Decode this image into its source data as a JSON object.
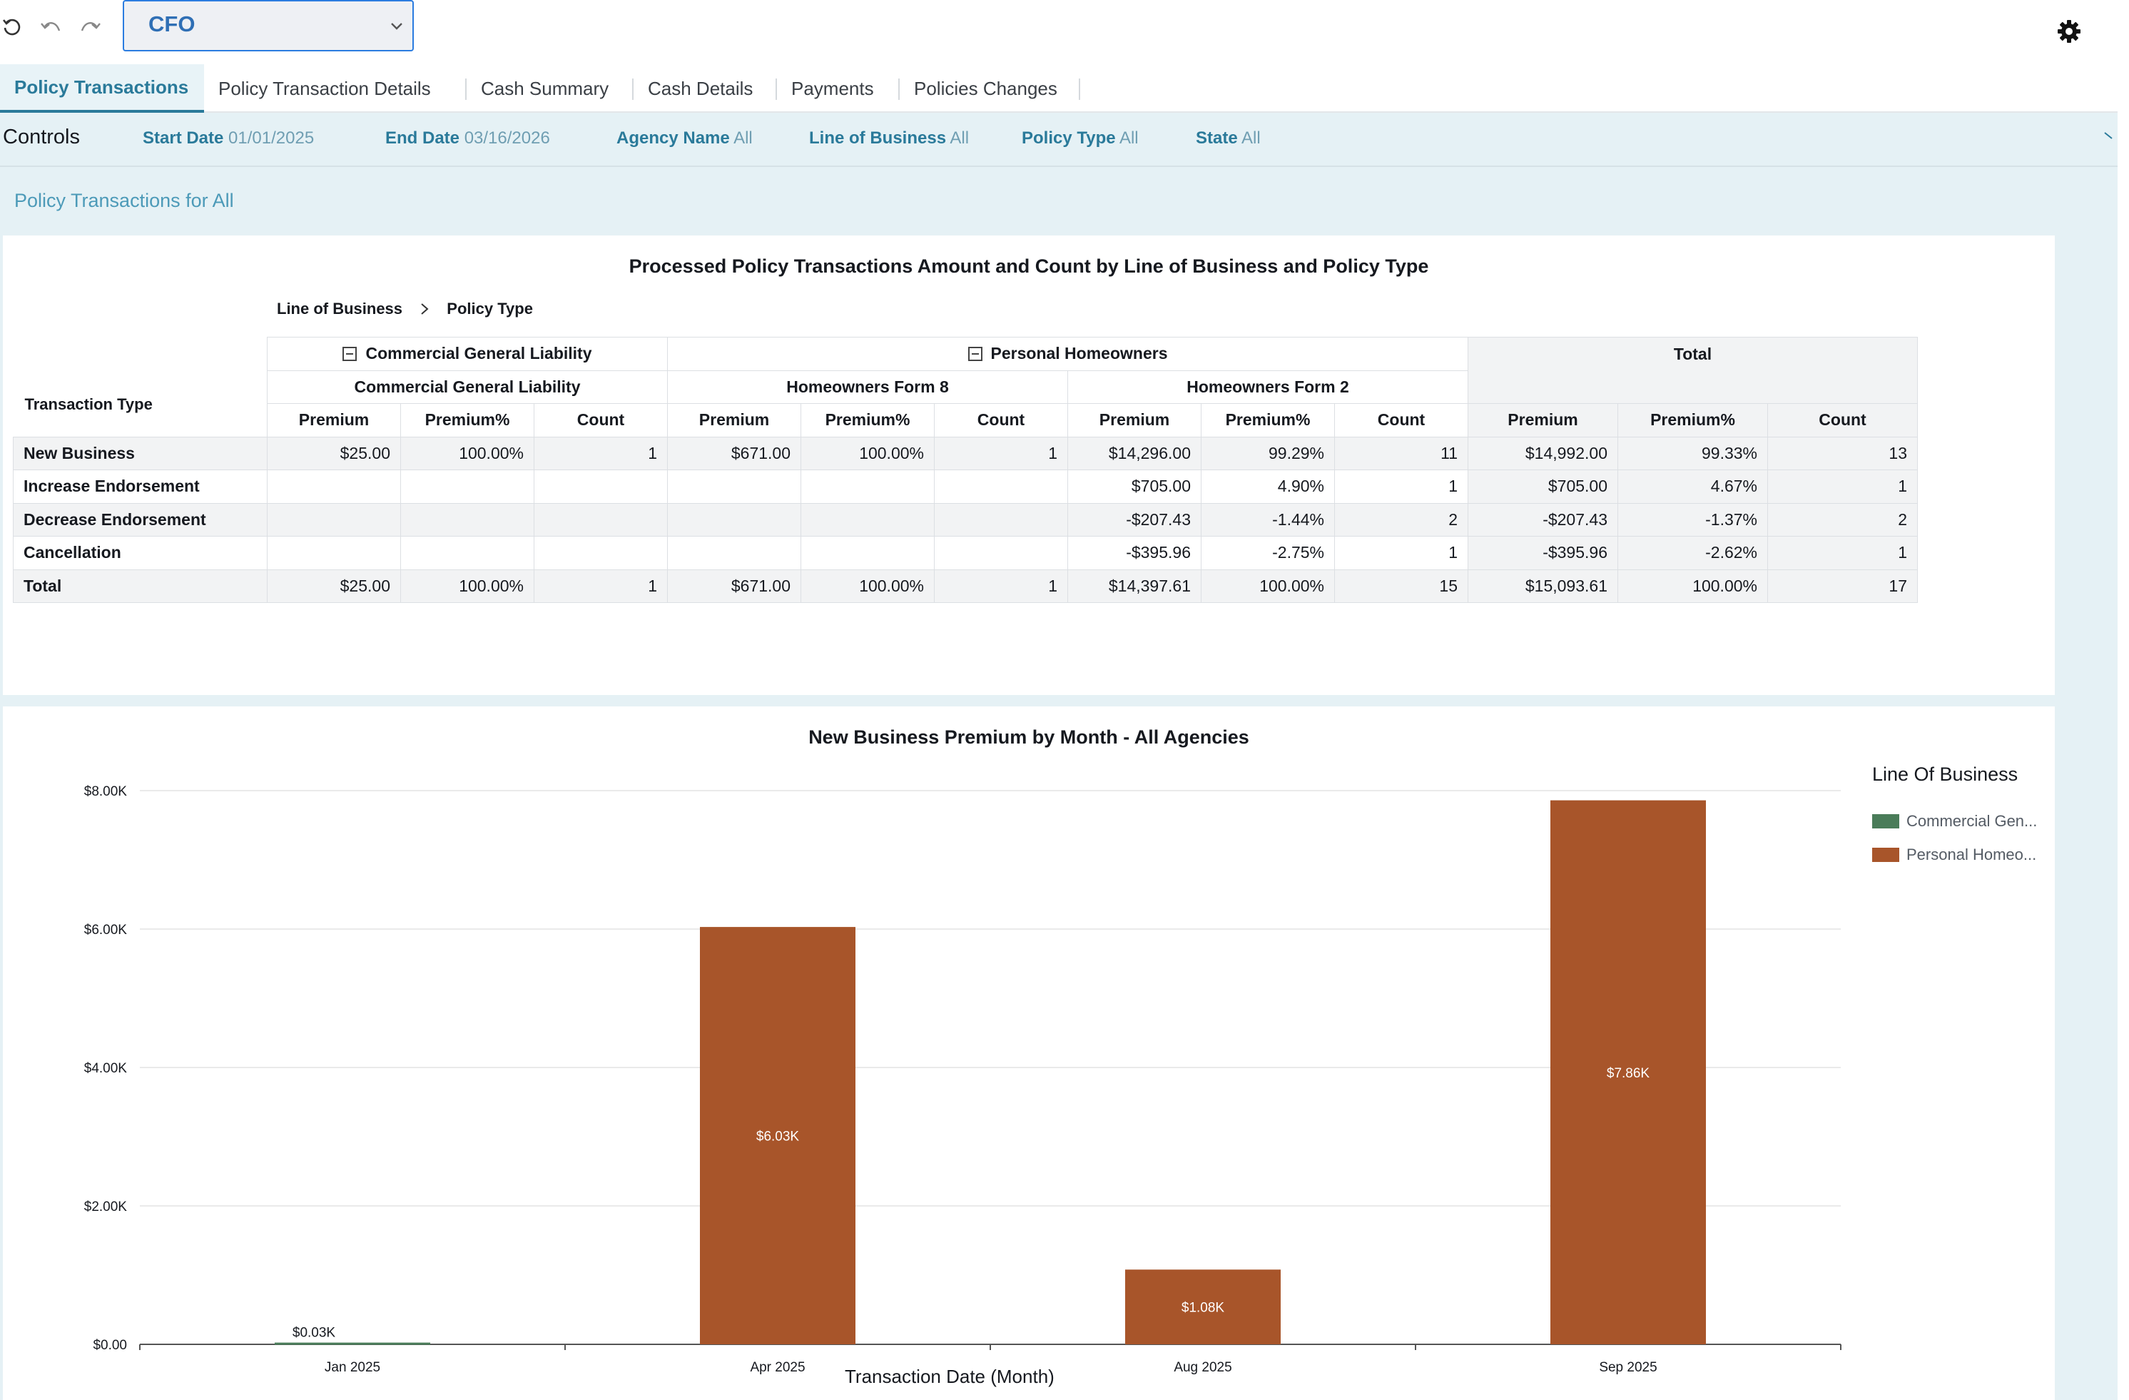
{
  "toolbar": {
    "sheet": "CFO",
    "icons": [
      "reset-icon",
      "undo-icon",
      "redo-icon",
      "chevron-down-icon",
      "gear-icon"
    ]
  },
  "tabs": [
    "Policy Transactions",
    "Policy Transaction Details",
    "Cash Summary",
    "Cash Details",
    "Payments",
    "Policies Changes"
  ],
  "controls": {
    "title": "Controls",
    "filters": [
      {
        "label": "Start Date",
        "value": "01/01/2025"
      },
      {
        "label": "End Date",
        "value": "03/16/2026"
      },
      {
        "label": "Agency Name",
        "value": "All"
      },
      {
        "label": "Line of Business",
        "value": "All"
      },
      {
        "label": "Policy Type",
        "value": "All"
      },
      {
        "label": "State",
        "value": "All"
      }
    ]
  },
  "section_title": "Policy Transactions for All",
  "pivot": {
    "title": "Processed Policy Transactions Amount and Count by Line of Business and Policy Type",
    "breadcrumb": [
      "Line of Business",
      "Policy Type"
    ],
    "lob": [
      "Commercial General Liability",
      "Personal Homeowners"
    ],
    "total_label": "Total",
    "policy_types": [
      "Commercial General Liability",
      "Homeowners Form 8",
      "Homeowners Form 2"
    ],
    "row_header": "Transaction Type",
    "measures": [
      "Premium",
      "Premium%",
      "Count"
    ],
    "rows": [
      {
        "label": "New Business",
        "cells": [
          "$25.00",
          "100.00%",
          "1",
          "$671.00",
          "100.00%",
          "1",
          "$14,296.00",
          "99.29%",
          "11",
          "$14,992.00",
          "99.33%",
          "13"
        ]
      },
      {
        "label": "Increase Endorsement",
        "cells": [
          "",
          "",
          "",
          "",
          "",
          "",
          "$705.00",
          "4.90%",
          "1",
          "$705.00",
          "4.67%",
          "1"
        ]
      },
      {
        "label": "Decrease Endorsement",
        "cells": [
          "",
          "",
          "",
          "",
          "",
          "",
          "-$207.43",
          "-1.44%",
          "2",
          "-$207.43",
          "-1.37%",
          "2"
        ]
      },
      {
        "label": "Cancellation",
        "cells": [
          "",
          "",
          "",
          "",
          "",
          "",
          "-$395.96",
          "-2.75%",
          "1",
          "-$395.96",
          "-2.62%",
          "1"
        ]
      },
      {
        "label": "Total",
        "cells": [
          "$25.00",
          "100.00%",
          "1",
          "$671.00",
          "100.00%",
          "1",
          "$14,397.61",
          "100.00%",
          "15",
          "$15,093.61",
          "100.00%",
          "17"
        ]
      }
    ]
  },
  "chart_data": {
    "type": "bar",
    "title": "New Business Premium by Month - All Agencies",
    "xlabel": "Transaction Date (Month)",
    "ylabel": "",
    "categories": [
      "Jan 2025",
      "Apr 2025",
      "Aug 2025",
      "Sep 2025"
    ],
    "series": [
      {
        "name": "Commercial Gen...",
        "color": "#4a7c59",
        "values": [
          25,
          0,
          0,
          0
        ]
      },
      {
        "name": "Personal Homeo...",
        "color": "#a8552a",
        "values": [
          0,
          6030,
          1080,
          7860
        ]
      }
    ],
    "data_labels": [
      "$0.03K",
      "$6.03K",
      "$1.08K",
      "$7.86K"
    ],
    "yticks": [
      "$0.00",
      "$2.00K",
      "$4.00K",
      "$6.00K",
      "$8.00K"
    ],
    "ylim": [
      0,
      8000
    ],
    "grid": true,
    "legend_title": "Line Of Business",
    "legend_position": "right"
  }
}
